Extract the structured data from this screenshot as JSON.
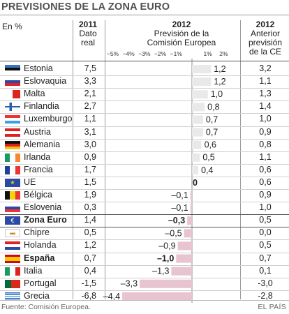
{
  "title": "PREVISIONES DE LA ZONA EURO",
  "unit": "En %",
  "columns": {
    "dato_year": "2011",
    "dato_l1": "Dato",
    "dato_l2": "real",
    "prev_year": "2012",
    "prev_l1": "Previsión de la",
    "prev_l2": "Comisión Europea",
    "ant_year": "2012",
    "ant_l1": "Anterior",
    "ant_l2": "previsión",
    "ant_l3": "de la CE"
  },
  "footer": {
    "source": "Fuente: Comisión Europea.",
    "brand": "EL PAÍS"
  },
  "colors": {
    "bar_positive": "#e9e9e9",
    "bar_negative": "#e8c4d0",
    "rule": "#9a9a9a"
  },
  "chart_data": {
    "type": "bar",
    "orientation": "horizontal",
    "xlim": [
      -4.6,
      2.6
    ],
    "tick_labels": [
      "−5%",
      "−4%",
      "−3%",
      "−2%",
      "−1%",
      "0",
      "1%",
      "2%"
    ],
    "tick_values": [
      -5,
      -4,
      -3,
      -2,
      -1,
      0,
      1,
      2
    ],
    "categories": [
      "Estonia",
      "Eslovaquia",
      "Malta",
      "Finlandia",
      "Luxemburgo",
      "Austria",
      "Alemania",
      "Irlanda",
      "Francia",
      "UE",
      "Bélgica",
      "Eslovenia",
      "Zona Euro",
      "Chipre",
      "Holanda",
      "España",
      "Italia",
      "Portugal",
      "Grecia"
    ],
    "series": [
      {
        "name": "2012 Previsión de la Comisión Europea",
        "values": [
          1.2,
          1.2,
          1.0,
          0.8,
          0.7,
          0.7,
          0.6,
          0.5,
          0.4,
          0.0,
          -0.1,
          -0.1,
          -0.3,
          -0.5,
          -0.9,
          -1.0,
          -1.3,
          -3.3,
          -4.4
        ],
        "labels": [
          "1,2",
          "1,2",
          "1,0",
          "0,8",
          "0,7",
          "0,7",
          "0,6",
          "0,5",
          "0,4",
          "0",
          "–0,1",
          "–0,1",
          "–0,3",
          "–0,5",
          "–0,9",
          "–1,0",
          "–1,3",
          "–3,3",
          "–4,4"
        ]
      }
    ],
    "dato_real_2011": [
      "7,5",
      "3,3",
      "2,1",
      "2,7",
      "1,1",
      "3,1",
      "3,0",
      "0,9",
      "1,7",
      "1,5",
      "1,9",
      "0,3",
      "1,4",
      "0,5",
      "1,2",
      "0,7",
      "0,4",
      "-1,5",
      "-6,8"
    ],
    "anterior_prevision": [
      "3,2",
      "1,1",
      "1,3",
      "1,4",
      "1,0",
      "0,9",
      "0,8",
      "1,1",
      "0,6",
      "0,6",
      "0,9",
      "1,0",
      "0,5",
      "0,0",
      "0,5",
      "0,7",
      "0,1",
      "-3,0",
      "-2,8"
    ],
    "bold_rows": [
      "Zona Euro",
      "España"
    ],
    "flags": [
      "estonia-flag",
      "slovakia-flag",
      "malta-flag",
      "finland-flag",
      "luxembourg-flag",
      "austria-flag",
      "germany-flag",
      "ireland-flag",
      "france-flag",
      "eu-flag",
      "belgium-flag",
      "slovenia-flag",
      "euro-flag",
      "cyprus-flag",
      "netherlands-flag",
      "spain-flag",
      "italy-flag",
      "portugal-flag",
      "greece-flag"
    ]
  }
}
